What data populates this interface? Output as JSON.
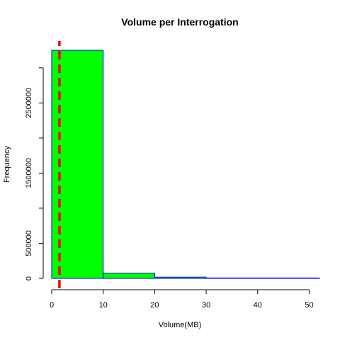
{
  "chart_data": {
    "type": "bar",
    "title": "Volume per Interrogation",
    "xlabel": "Volume(MB)",
    "ylabel": "Frequency",
    "bins": [
      {
        "start": 0,
        "end": 10,
        "count": 3250000
      },
      {
        "start": 10,
        "end": 20,
        "count": 75000
      },
      {
        "start": 20,
        "end": 30,
        "count": 18000
      },
      {
        "start": 30,
        "end": 40,
        "count": 2000
      },
      {
        "start": 40,
        "end": 50,
        "count": 800
      },
      {
        "start": 50,
        "end": 52,
        "count": 300
      }
    ],
    "x_ticks": [
      "0",
      "10",
      "20",
      "30",
      "40",
      "50"
    ],
    "y_ticks": [
      "0",
      "500000",
      "1500000",
      "2500000"
    ],
    "y_tick_values": [
      0,
      500000,
      1500000,
      2500000
    ],
    "y_axis_minor_ticks": [
      1000000,
      2000000,
      3000000
    ],
    "xlim": [
      0,
      52
    ],
    "ylim": [
      0,
      3250000
    ],
    "reference_line": {
      "x": 1.5,
      "style": "dashed"
    },
    "colors": {
      "bar_fill": "#00ff00",
      "bar_border": "#0000ff",
      "reference_line": "#ff0000"
    }
  }
}
